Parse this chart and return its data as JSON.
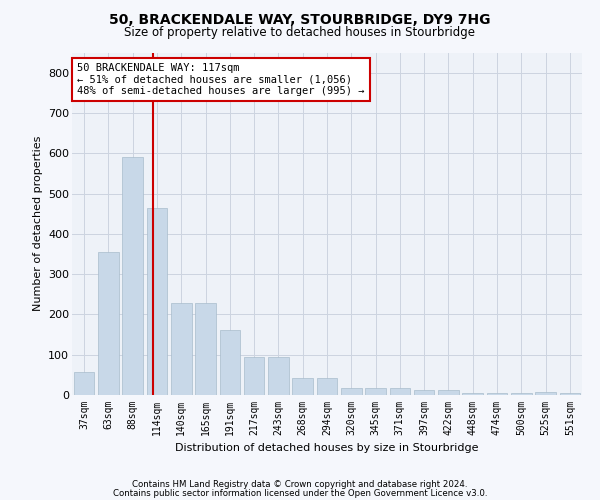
{
  "title": "50, BRACKENDALE WAY, STOURBRIDGE, DY9 7HG",
  "subtitle": "Size of property relative to detached houses in Stourbridge",
  "xlabel": "Distribution of detached houses by size in Stourbridge",
  "ylabel": "Number of detached properties",
  "bar_color": "#c8d8e8",
  "bar_edge_color": "#a8bccc",
  "grid_color": "#ccd4e0",
  "background_color": "#eef2f8",
  "fig_background_color": "#f5f7fc",
  "categories": [
    "37sqm",
    "63sqm",
    "88sqm",
    "114sqm",
    "140sqm",
    "165sqm",
    "191sqm",
    "217sqm",
    "243sqm",
    "268sqm",
    "294sqm",
    "320sqm",
    "345sqm",
    "371sqm",
    "397sqm",
    "422sqm",
    "448sqm",
    "474sqm",
    "500sqm",
    "525sqm",
    "551sqm"
  ],
  "values": [
    57,
    355,
    590,
    465,
    228,
    228,
    162,
    95,
    95,
    42,
    42,
    17,
    17,
    17,
    12,
    12,
    5,
    5,
    5,
    8,
    5
  ],
  "ylim": [
    0,
    850
  ],
  "yticks": [
    0,
    100,
    200,
    300,
    400,
    500,
    600,
    700,
    800
  ],
  "property_line_x": 2.85,
  "annotation_text": "50 BRACKENDALE WAY: 117sqm\n← 51% of detached houses are smaller (1,056)\n48% of semi-detached houses are larger (995) →",
  "annotation_box_color": "#ffffff",
  "annotation_box_edge": "#cc0000",
  "footer_line1": "Contains HM Land Registry data © Crown copyright and database right 2024.",
  "footer_line2": "Contains public sector information licensed under the Open Government Licence v3.0."
}
